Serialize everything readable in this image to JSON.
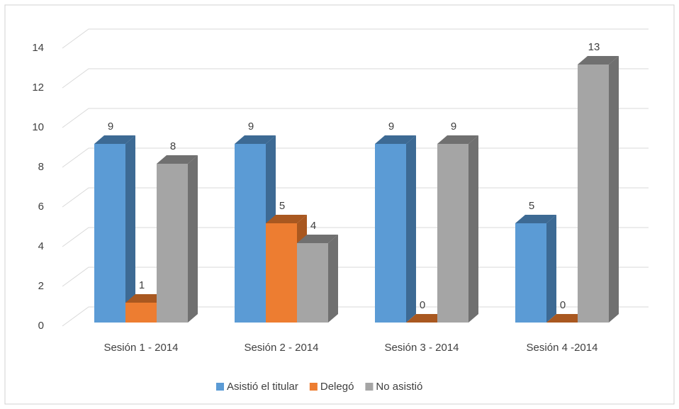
{
  "chart_data": {
    "type": "bar3d",
    "categories": [
      "Sesión 1 - 2014",
      "Sesión 2 - 2014",
      "Sesión 3 - 2014",
      "Sesión 4 -2014"
    ],
    "series": [
      {
        "name": "Asistió el titular",
        "color": "#5b9bd5",
        "side": "#3d6a94",
        "values": [
          9,
          9,
          9,
          5
        ]
      },
      {
        "name": "Delegó",
        "color": "#ed7d31",
        "side": "#a95820",
        "values": [
          1,
          5,
          0,
          0
        ]
      },
      {
        "name": "No asistió",
        "color": "#a5a5a5",
        "side": "#707070",
        "values": [
          8,
          4,
          9,
          13
        ]
      }
    ],
    "ylim": [
      0,
      14
    ],
    "yticks": [
      0,
      2,
      4,
      6,
      8,
      10,
      12,
      14
    ],
    "grid": true,
    "legend": "bottom"
  }
}
